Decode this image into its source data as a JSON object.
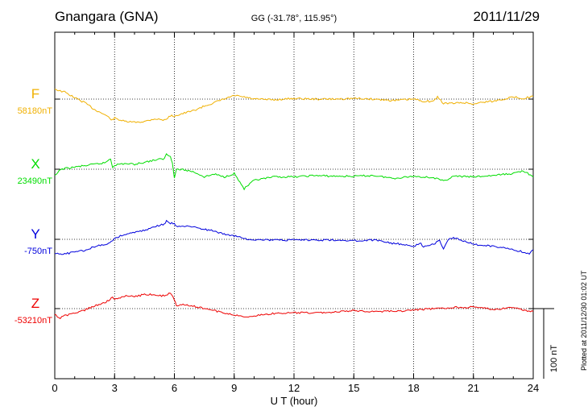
{
  "header": {
    "station": "Gnangara (GNA)",
    "coords": "GG (-31.78°, 115.95°)",
    "date": "2011/11/29"
  },
  "footer": {
    "plotted": "Plotted at 2011/12/30 01:02 UT"
  },
  "chart_data": {
    "type": "line",
    "title": "Gnangara (GNA)",
    "xlabel": "U T (hour)",
    "xlim": [
      0,
      24
    ],
    "xticks": [
      0,
      3,
      6,
      9,
      12,
      15,
      18,
      21,
      24
    ],
    "grid": true,
    "scale_bar": {
      "value": 100,
      "label": "100 nT"
    },
    "series": [
      {
        "name": "F",
        "baseline_label": "58180nT",
        "baseline": 58180,
        "color": "#f0b000",
        "x": [
          0,
          0.2,
          0.5,
          1,
          1.5,
          2,
          2.5,
          2.9,
          3,
          3.5,
          4,
          4.5,
          5,
          5.5,
          5.8,
          6,
          6.5,
          7,
          7.5,
          8,
          8.5,
          9,
          9.5,
          10,
          11,
          12,
          13,
          14,
          15,
          16,
          17,
          18,
          18.5,
          19,
          19.2,
          19.5,
          20,
          20.5,
          21,
          21.5,
          22,
          23,
          23.5,
          24
        ],
        "values": [
          58195,
          58192,
          58190,
          58182,
          58175,
          58165,
          58158,
          58150,
          58153,
          58148,
          58147,
          58148,
          58152,
          58150,
          58156,
          58156,
          58160,
          58164,
          58170,
          58175,
          58180,
          58185,
          58183,
          58180,
          58179,
          58181,
          58180,
          58180,
          58181,
          58180,
          58178,
          58180,
          58177,
          58177,
          58183,
          58174,
          58174,
          58175,
          58173,
          58176,
          58177,
          58183,
          58181,
          58184
        ]
      },
      {
        "name": "X",
        "baseline_label": "23490nT",
        "baseline": 23490,
        "color": "#00dd00",
        "x": [
          0,
          0.3,
          1,
          1.5,
          2,
          2.5,
          2.8,
          2.9,
          3,
          3.5,
          4,
          4.5,
          5,
          5.5,
          5.6,
          5.8,
          5.9,
          6,
          6.1,
          6.5,
          7,
          7.5,
          8,
          8.5,
          9,
          9.5,
          10,
          11,
          12,
          13,
          14,
          15,
          16,
          17,
          18,
          19,
          19.5,
          20,
          21,
          22,
          23,
          23.5,
          24
        ],
        "values": [
          23480,
          23490,
          23493,
          23495,
          23497,
          23499,
          23505,
          23493,
          23496,
          23498,
          23497,
          23500,
          23503,
          23505,
          23512,
          23508,
          23500,
          23477,
          23490,
          23489,
          23486,
          23479,
          23483,
          23479,
          23484,
          23462,
          23474,
          23479,
          23479,
          23481,
          23480,
          23480,
          23481,
          23477,
          23480,
          23478,
          23473,
          23480,
          23479,
          23481,
          23484,
          23488,
          23479
        ]
      },
      {
        "name": "Y",
        "baseline_label": "-750nT",
        "baseline": -750,
        "color": "#0000dd",
        "x": [
          0,
          0.5,
          1,
          1.5,
          2,
          2.5,
          2.9,
          3,
          3.5,
          4,
          4.5,
          5,
          5.5,
          5.6,
          5.8,
          6,
          6.1,
          6.5,
          7,
          7.5,
          8,
          8.5,
          9,
          9.5,
          10,
          11,
          12,
          13,
          14,
          15,
          16,
          17,
          17.5,
          18,
          18.3,
          18.5,
          19,
          19.3,
          19.5,
          19.8,
          20,
          21,
          22,
          23,
          23.8,
          24
        ],
        "values": [
          -771,
          -771,
          -768,
          -766,
          -760,
          -758,
          -752,
          -748,
          -743,
          -740,
          -737,
          -732,
          -728,
          -724,
          -727,
          -727,
          -732,
          -731,
          -733,
          -736,
          -738,
          -743,
          -745,
          -749,
          -750,
          -751,
          -751,
          -751,
          -751,
          -752,
          -751,
          -756,
          -757,
          -761,
          -755,
          -760,
          -757,
          -752,
          -763,
          -748,
          -748,
          -757,
          -760,
          -765,
          -770,
          -765
        ]
      },
      {
        "name": "Z",
        "baseline_label": "-53210nT",
        "baseline": -53210,
        "color": "#ee0000",
        "x": [
          0,
          0.2,
          0.5,
          1,
          1.5,
          2,
          2.5,
          2.9,
          3,
          3.5,
          4,
          4.5,
          5,
          5.5,
          5.8,
          6,
          6.1,
          6.5,
          7,
          7.5,
          8,
          8.5,
          9,
          9.5,
          10,
          11,
          12,
          13,
          14,
          15,
          16,
          17,
          18,
          19,
          19.5,
          20,
          21,
          22,
          23,
          23.5,
          24
        ],
        "values": [
          -53218,
          -53224,
          -53220,
          -53217,
          -53212,
          -53206,
          -53202,
          -53194,
          -53197,
          -53192,
          -53193,
          -53190,
          -53190,
          -53192,
          -53188,
          -53197,
          -53206,
          -53204,
          -53207,
          -53210,
          -53213,
          -53216,
          -53219,
          -53222,
          -53220,
          -53217,
          -53216,
          -53216,
          -53215,
          -53213,
          -53214,
          -53214,
          -53212,
          -53210,
          -53210,
          -53208,
          -53208,
          -53211,
          -53209,
          -53212,
          -53214
        ]
      }
    ]
  }
}
